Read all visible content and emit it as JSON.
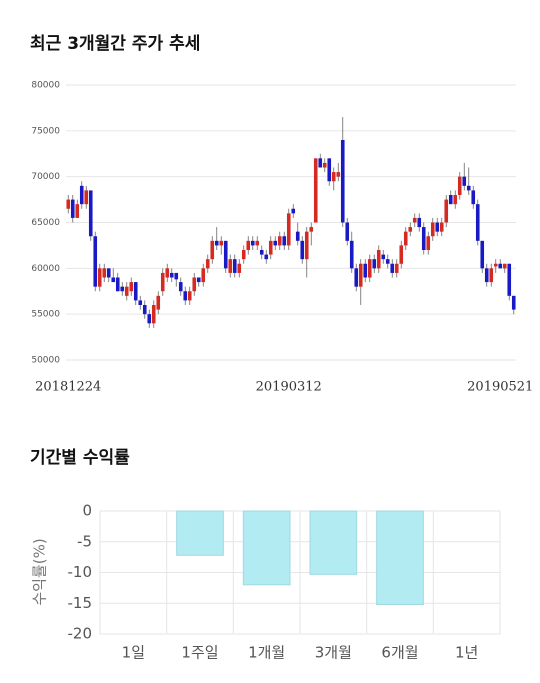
{
  "chart_data": [
    {
      "type": "candlestick",
      "title": "최근 3개월간 주가 추세",
      "categories": [
        "20181224",
        null,
        null,
        null,
        null,
        null,
        null,
        null,
        null,
        null,
        null,
        null,
        null,
        null,
        null,
        null,
        null,
        null,
        null,
        null,
        null,
        null,
        null,
        null,
        null,
        null,
        null,
        null,
        null,
        null,
        null,
        null,
        null,
        null,
        null,
        null,
        null,
        null,
        null,
        null,
        null,
        null,
        null,
        null,
        null,
        null,
        null,
        null,
        null,
        "20190312",
        null,
        null,
        null,
        null,
        null,
        null,
        null,
        null,
        null,
        null,
        null,
        null,
        null,
        null,
        null,
        null,
        null,
        null,
        null,
        null,
        null,
        null,
        null,
        null,
        null,
        null,
        null,
        null,
        null,
        null,
        null,
        null,
        null,
        null,
        null,
        null,
        null,
        null,
        null,
        null,
        null,
        null,
        null,
        null,
        null,
        null,
        "20190521",
        null,
        null,
        null
      ],
      "open": [
        66500,
        67500,
        65500,
        69000,
        67000,
        68500,
        63500,
        58000,
        59000,
        60000,
        59000,
        59000,
        58000,
        57000,
        57500,
        58500,
        56500,
        56000,
        55000,
        54000,
        55500,
        57500,
        59000,
        59500,
        59500,
        58500,
        57500,
        56500,
        57500,
        59000,
        58500,
        60000,
        61000,
        63000,
        62500,
        63000,
        59500,
        61000,
        59500,
        61000,
        62000,
        63000,
        62500,
        62000,
        61500,
        61500,
        63000,
        62500,
        63500,
        62500,
        66500,
        64000,
        63000,
        61000,
        64000,
        65000,
        72000,
        71000,
        72000,
        69500,
        70000,
        74000,
        65000,
        63000,
        60000,
        58000,
        60500,
        59000,
        61000,
        60000,
        61500,
        61000,
        60500,
        59500,
        60500,
        62500,
        64000,
        65000,
        65500,
        64500,
        62000,
        63500,
        65000,
        64000,
        65000,
        68000,
        67000,
        68000,
        70000,
        69000,
        68500,
        67000,
        63000,
        60000,
        58500,
        60200,
        60500,
        60000,
        60500,
        57000
      ],
      "high": [
        68000,
        68000,
        67500,
        69500,
        69000,
        68500,
        64000,
        60500,
        60500,
        60000,
        60000,
        59500,
        58500,
        58500,
        59000,
        58500,
        57000,
        56500,
        55500,
        56500,
        57500,
        60000,
        60500,
        60000,
        59500,
        59000,
        58000,
        58000,
        59500,
        59000,
        60500,
        61500,
        63500,
        64500,
        63500,
        63000,
        61500,
        61500,
        61000,
        62500,
        63500,
        63500,
        63500,
        62500,
        62000,
        63500,
        63500,
        64000,
        64000,
        66500,
        67000,
        65000,
        63500,
        64500,
        65000,
        72000,
        72500,
        72000,
        72000,
        71000,
        71500,
        76500,
        65500,
        64000,
        60500,
        61000,
        61000,
        61500,
        61500,
        62500,
        62000,
        61500,
        61000,
        61000,
        63000,
        64500,
        65000,
        66000,
        66000,
        65000,
        64000,
        65500,
        65500,
        65500,
        68000,
        68500,
        68500,
        70500,
        71500,
        71000,
        69000,
        67500,
        63000,
        60500,
        60500,
        61000,
        61000,
        60500,
        60500,
        57000
      ],
      "low": [
        66000,
        65000,
        65500,
        66500,
        66500,
        63000,
        57500,
        57500,
        58500,
        58500,
        58500,
        57500,
        57000,
        56500,
        57000,
        56000,
        55500,
        54500,
        53500,
        53500,
        55000,
        57000,
        58500,
        58500,
        58000,
        57000,
        56000,
        56000,
        57000,
        58000,
        58000,
        59500,
        60500,
        62000,
        61500,
        59500,
        59000,
        59000,
        59000,
        60500,
        61500,
        62000,
        62000,
        61000,
        60500,
        61000,
        62000,
        62000,
        62000,
        62000,
        65500,
        62500,
        60500,
        59000,
        62500,
        65000,
        71000,
        70500,
        69000,
        68500,
        69500,
        64500,
        62500,
        59500,
        57500,
        56000,
        58500,
        58500,
        59500,
        59500,
        60500,
        60000,
        59000,
        59000,
        60000,
        62000,
        63500,
        64500,
        64000,
        61500,
        61500,
        63000,
        63500,
        63500,
        64500,
        67000,
        66500,
        67500,
        68500,
        68000,
        66500,
        62500,
        59500,
        58000,
        58000,
        59500,
        60000,
        59500,
        56500,
        55000
      ],
      "close": [
        67500,
        65500,
        67000,
        67000,
        68500,
        63500,
        58000,
        60000,
        60000,
        59000,
        58500,
        57500,
        57500,
        58000,
        58500,
        56500,
        56000,
        55000,
        54000,
        56000,
        57000,
        59500,
        60000,
        59000,
        58800,
        57500,
        56500,
        57500,
        59000,
        58500,
        60000,
        61000,
        63000,
        62500,
        63000,
        60000,
        61000,
        59500,
        60500,
        62000,
        63000,
        62500,
        63000,
        61500,
        61000,
        63000,
        62500,
        63500,
        62500,
        66000,
        66000,
        63000,
        61000,
        64000,
        64500,
        72000,
        71000,
        71500,
        69500,
        70500,
        70500,
        65000,
        63000,
        60000,
        58000,
        60500,
        59000,
        61000,
        60000,
        62000,
        61000,
        60500,
        59500,
        60500,
        62500,
        64000,
        64500,
        65500,
        64500,
        62000,
        63500,
        65000,
        64000,
        65000,
        67500,
        67000,
        68000,
        70000,
        69000,
        68500,
        67000,
        63000,
        60000,
        58500,
        60000,
        60500,
        60000,
        60500,
        57000,
        55500
      ],
      "up_color": "#d42a22",
      "down_color": "#1a1ac4",
      "ylim": [
        50000,
        80000
      ],
      "yticks": [
        50000,
        55000,
        60000,
        65000,
        70000,
        75000,
        80000
      ],
      "grid": true
    },
    {
      "type": "bar",
      "title": "기간별 수익률",
      "y_label": "수익률(%)",
      "categories": [
        "1일",
        "1주일",
        "1개월",
        "3개월",
        "6개월",
        "1년"
      ],
      "values": [
        null,
        -7.2,
        -12.0,
        -10.3,
        -15.2,
        null
      ],
      "color": "#b3ebf2",
      "ylim": [
        -20,
        0
      ],
      "yticks": [
        0,
        -5,
        -10,
        -15,
        -20
      ],
      "grid": true
    }
  ]
}
